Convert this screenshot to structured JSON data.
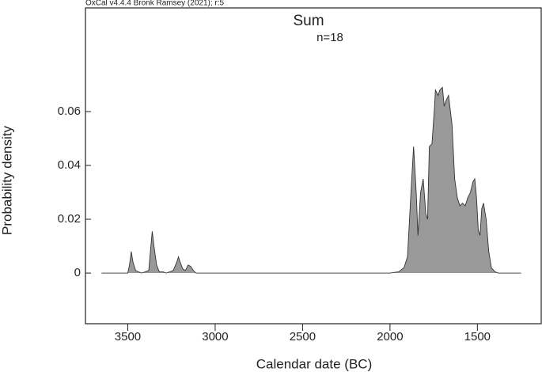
{
  "chart_data": {
    "type": "area",
    "caption": "OxCal v4.4.4 Bronk Ramsey (2021); r:5",
    "title": "Sum",
    "subtitle": "n=18",
    "xlabel": "Calendar date (BC)",
    "ylabel": "Probability density",
    "xlim": [
      3742,
      1135
    ],
    "ylim": [
      -0.0188,
      0.0985
    ],
    "xticks": [
      3500,
      3000,
      2500,
      2000,
      1500
    ],
    "yticks": [
      0,
      0.02,
      0.04,
      0.06
    ],
    "color": "#999999",
    "line_color": "#333333",
    "x": [
      3650,
      3500,
      3490,
      3480,
      3470,
      3455,
      3440,
      3420,
      3380,
      3365,
      3360,
      3350,
      3335,
      3320,
      3300,
      3280,
      3240,
      3220,
      3210,
      3200,
      3185,
      3170,
      3155,
      3140,
      3125,
      3110,
      2000,
      1950,
      1920,
      1900,
      1880,
      1865,
      1850,
      1840,
      1825,
      1810,
      1795,
      1785,
      1775,
      1760,
      1745,
      1740,
      1725,
      1715,
      1700,
      1690,
      1680,
      1665,
      1645,
      1630,
      1615,
      1600,
      1585,
      1570,
      1555,
      1540,
      1525,
      1515,
      1505,
      1495,
      1485,
      1475,
      1465,
      1450,
      1435,
      1420,
      1400,
      1380,
      1250
    ],
    "values": [
      0,
      0,
      0.003,
      0.008,
      0.004,
      0.001,
      0.0005,
      0,
      0.001,
      0.012,
      0.0155,
      0.01,
      0.003,
      0.0005,
      0.0005,
      0,
      0.001,
      0.004,
      0.006,
      0.004,
      0.0015,
      0.001,
      0.003,
      0.0025,
      0.001,
      0,
      0,
      0.0005,
      0.002,
      0.006,
      0.03,
      0.047,
      0.03,
      0.014,
      0.03,
      0.035,
      0.022,
      0.02,
      0.047,
      0.048,
      0.062,
      0.068,
      0.066,
      0.068,
      0.069,
      0.062,
      0.064,
      0.066,
      0.055,
      0.035,
      0.028,
      0.025,
      0.026,
      0.025,
      0.028,
      0.03,
      0.034,
      0.035,
      0.028,
      0.016,
      0.014,
      0.024,
      0.026,
      0.02,
      0.008,
      0.002,
      0.0005,
      0,
      0
    ]
  }
}
